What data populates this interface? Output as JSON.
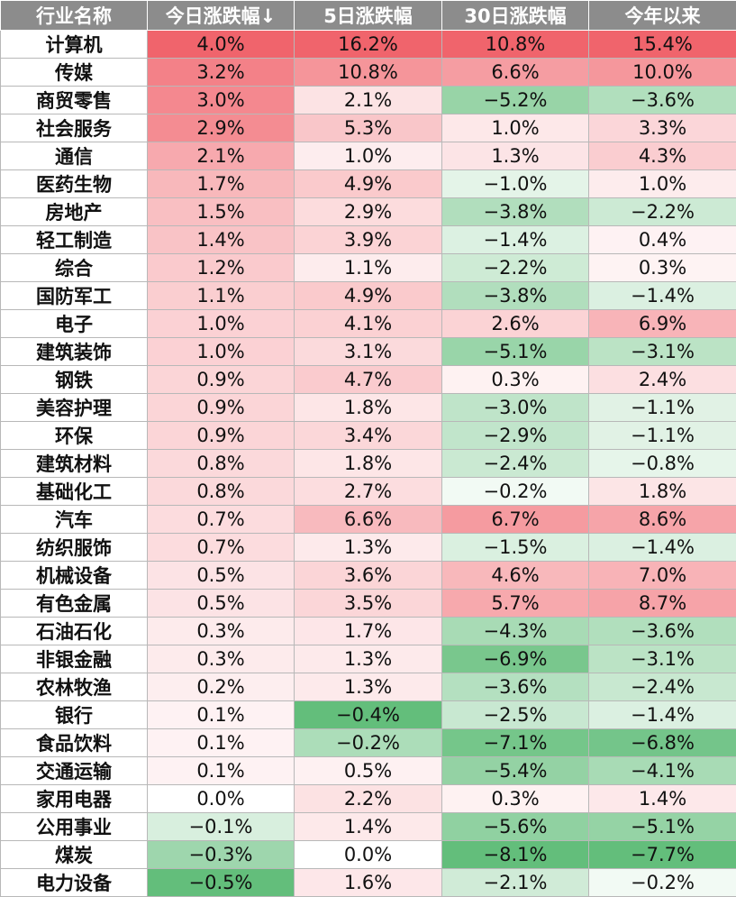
{
  "chart_data": {
    "type": "heatmap",
    "columns": [
      "行业名称",
      "今日涨跌幅↓",
      "5日涨跌幅",
      "30日涨跌幅",
      "今年以来"
    ],
    "colors": {
      "header_bg": "#8c8c8c",
      "header_text": "#ffffff",
      "positive_max": "#f0646c",
      "negative_max": "#63be7b",
      "neutral": "#ffffff"
    },
    "rows": [
      {
        "name": "计算机",
        "values": [
          "4.0%",
          "16.2%",
          "10.8%",
          "15.4%"
        ]
      },
      {
        "name": "传媒",
        "values": [
          "3.2%",
          "10.8%",
          "6.6%",
          "10.0%"
        ]
      },
      {
        "name": "商贸零售",
        "values": [
          "3.0%",
          "2.1%",
          "−5.2%",
          "−3.6%"
        ]
      },
      {
        "name": "社会服务",
        "values": [
          "2.9%",
          "5.3%",
          "1.0%",
          "3.3%"
        ]
      },
      {
        "name": "通信",
        "values": [
          "2.1%",
          "1.0%",
          "1.3%",
          "4.3%"
        ]
      },
      {
        "name": "医药生物",
        "values": [
          "1.7%",
          "4.9%",
          "−1.0%",
          "1.0%"
        ]
      },
      {
        "name": "房地产",
        "values": [
          "1.5%",
          "2.9%",
          "−3.8%",
          "−2.2%"
        ]
      },
      {
        "name": "轻工制造",
        "values": [
          "1.4%",
          "3.9%",
          "−1.4%",
          "0.4%"
        ]
      },
      {
        "name": "综合",
        "values": [
          "1.2%",
          "1.1%",
          "−2.2%",
          "0.3%"
        ]
      },
      {
        "name": "国防军工",
        "values": [
          "1.1%",
          "4.9%",
          "−3.8%",
          "−1.4%"
        ]
      },
      {
        "name": "电子",
        "values": [
          "1.0%",
          "4.1%",
          "2.6%",
          "6.9%"
        ]
      },
      {
        "name": "建筑装饰",
        "values": [
          "1.0%",
          "3.1%",
          "−5.1%",
          "−3.1%"
        ]
      },
      {
        "name": "钢铁",
        "values": [
          "0.9%",
          "4.7%",
          "0.3%",
          "2.4%"
        ]
      },
      {
        "name": "美容护理",
        "values": [
          "0.9%",
          "1.8%",
          "−3.0%",
          "−1.1%"
        ]
      },
      {
        "name": "环保",
        "values": [
          "0.9%",
          "3.4%",
          "−2.9%",
          "−1.1%"
        ]
      },
      {
        "name": "建筑材料",
        "values": [
          "0.8%",
          "1.8%",
          "−2.4%",
          "−0.8%"
        ]
      },
      {
        "name": "基础化工",
        "values": [
          "0.8%",
          "2.7%",
          "−0.2%",
          "1.8%"
        ]
      },
      {
        "name": "汽车",
        "values": [
          "0.7%",
          "6.6%",
          "6.7%",
          "8.6%"
        ]
      },
      {
        "name": "纺织服饰",
        "values": [
          "0.7%",
          "1.3%",
          "−1.5%",
          "−1.4%"
        ]
      },
      {
        "name": "机械设备",
        "values": [
          "0.5%",
          "3.6%",
          "4.6%",
          "7.0%"
        ]
      },
      {
        "name": "有色金属",
        "values": [
          "0.5%",
          "3.5%",
          "5.7%",
          "8.7%"
        ]
      },
      {
        "name": "石油石化",
        "values": [
          "0.3%",
          "1.7%",
          "−4.3%",
          "−3.6%"
        ]
      },
      {
        "name": "非银金融",
        "values": [
          "0.3%",
          "1.3%",
          "−6.9%",
          "−3.1%"
        ]
      },
      {
        "name": "农林牧渔",
        "values": [
          "0.2%",
          "1.3%",
          "−3.6%",
          "−2.4%"
        ]
      },
      {
        "name": "银行",
        "values": [
          "0.1%",
          "−0.4%",
          "−2.5%",
          "−1.4%"
        ]
      },
      {
        "name": "食品饮料",
        "values": [
          "0.1%",
          "−0.2%",
          "−7.1%",
          "−6.8%"
        ]
      },
      {
        "name": "交通运输",
        "values": [
          "0.1%",
          "0.5%",
          "−5.4%",
          "−4.1%"
        ]
      },
      {
        "name": "家用电器",
        "values": [
          "0.0%",
          "2.2%",
          "0.3%",
          "1.4%"
        ]
      },
      {
        "name": "公用事业",
        "values": [
          "−0.1%",
          "1.4%",
          "−5.6%",
          "−5.1%"
        ]
      },
      {
        "name": "煤炭",
        "values": [
          "−0.3%",
          "0.0%",
          "−8.1%",
          "−7.7%"
        ]
      },
      {
        "name": "电力设备",
        "values": [
          "−0.5%",
          "1.6%",
          "−2.1%",
          "−0.2%"
        ]
      }
    ]
  }
}
